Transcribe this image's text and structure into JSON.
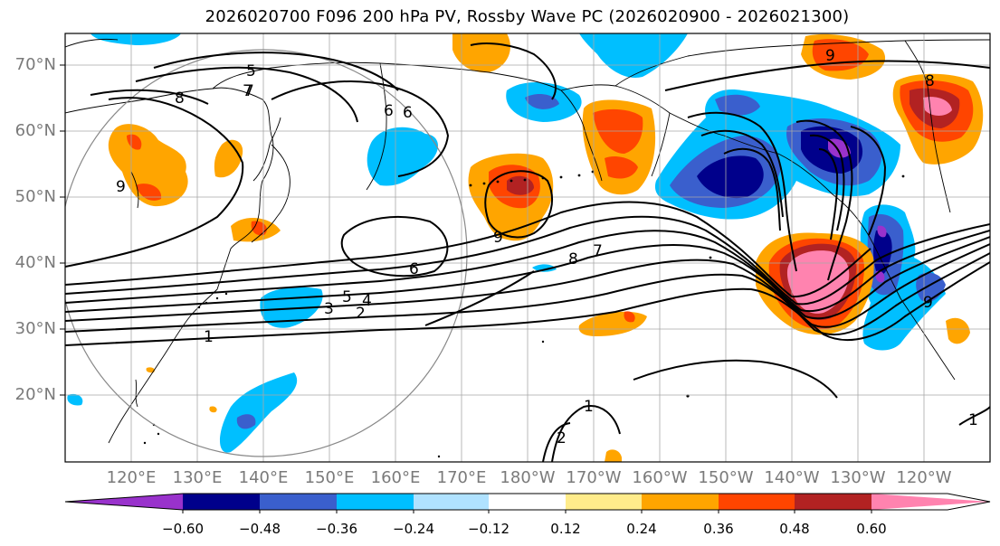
{
  "title": "2026020700 F096 200 hPa PV, Rossby Wave PC (2026020900 - 2026021300)",
  "lat_labels": [
    "70°N",
    "60°N",
    "50°N",
    "40°N",
    "30°N",
    "20°N"
  ],
  "lon_labels": [
    "120°E",
    "130°E",
    "140°E",
    "150°E",
    "160°E",
    "170°E",
    "180°W",
    "170°W",
    "160°W",
    "150°W",
    "140°W",
    "130°W",
    "120°W"
  ],
  "contour_labels": [
    "1",
    "2",
    "3",
    "4",
    "5",
    "6",
    "7",
    "8",
    "9",
    "6",
    "8",
    "7",
    "9",
    "9",
    "9",
    "1",
    "2",
    "1",
    "6",
    "5",
    "7",
    "8"
  ],
  "colorbar": {
    "ticks": [
      "−0.60",
      "−0.48",
      "−0.36",
      "−0.24",
      "−0.12",
      "0.12",
      "0.24",
      "0.36",
      "0.48",
      "0.60"
    ],
    "colors": [
      "#9932cc",
      "#00008b",
      "#3a5fcd",
      "#00bfff",
      "#b0e2ff",
      "#ffffff",
      "#ffec8b",
      "#ffa500",
      "#ff4500",
      "#b22222",
      "#ff83af"
    ]
  }
}
